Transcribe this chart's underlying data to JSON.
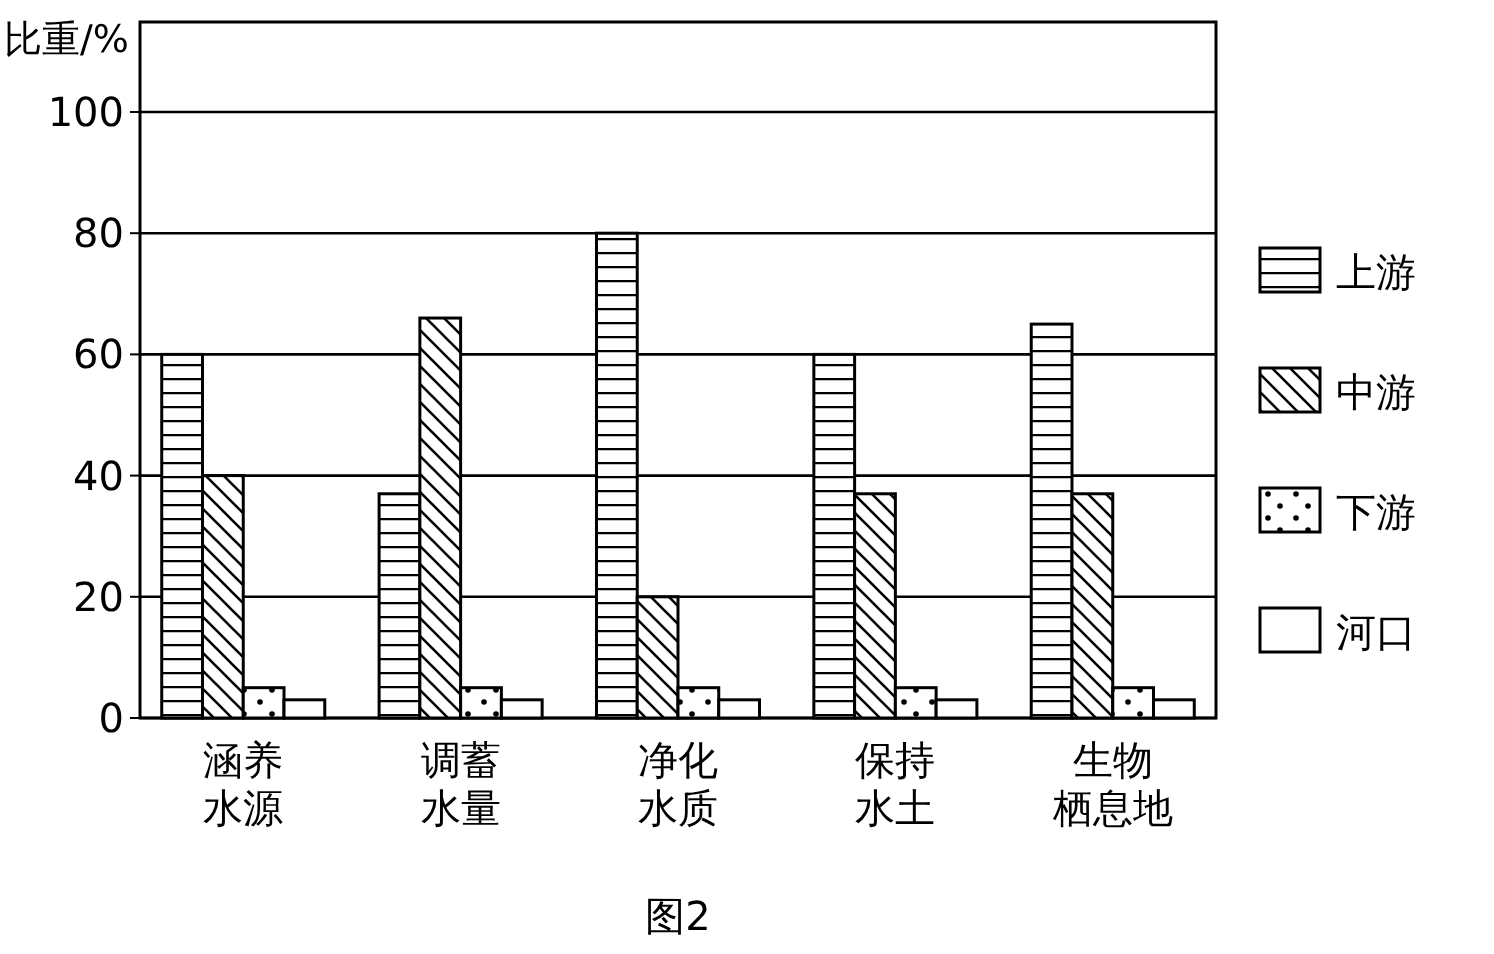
{
  "chart_data": {
    "type": "bar",
    "title": "图2",
    "ylabel": "比重/%",
    "categories": [
      "涵养水源",
      "调蓄水量",
      "净化水质",
      "保持水土",
      "生物栖息地"
    ],
    "series": [
      {
        "name": "上游",
        "color": "#000000",
        "values": [
          60,
          37,
          80,
          60,
          65
        ]
      },
      {
        "name": "中游",
        "color": "#000000",
        "values": [
          40,
          66,
          20,
          37,
          37
        ]
      },
      {
        "name": "下游",
        "color": "#000000",
        "values": [
          5,
          5,
          5,
          5,
          5
        ]
      },
      {
        "name": "河口",
        "color": "#000000",
        "values": [
          3,
          3,
          3,
          3,
          3
        ]
      }
    ],
    "ylim": [
      0,
      100
    ],
    "yticks": [
      0,
      20,
      40,
      60,
      80,
      100
    ],
    "grid": "y",
    "legend": "right"
  }
}
